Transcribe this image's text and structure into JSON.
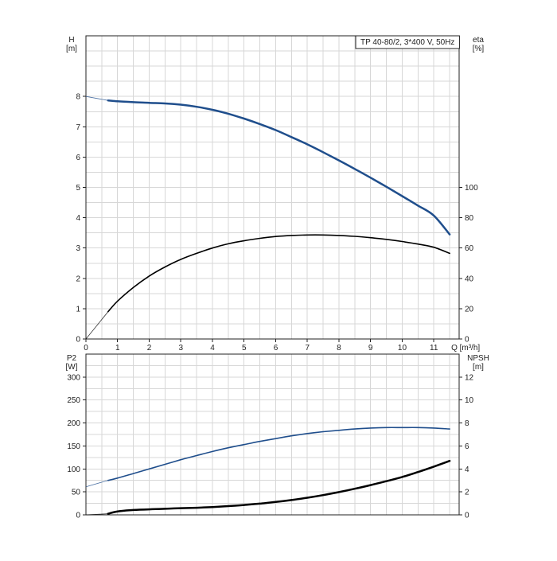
{
  "chart_data": [
    {
      "type": "line",
      "title": "TP 40-80/2, 3*400 V, 50Hz",
      "xlabel": "Q [m³/h]",
      "xlim": [
        0,
        11.8
      ],
      "x_ticks": [
        0,
        1,
        2,
        3,
        4,
        5,
        6,
        7,
        8,
        9,
        10,
        11
      ],
      "ylabel_left": [
        "H",
        "[m]"
      ],
      "ylim_left": [
        0,
        10
      ],
      "y_ticks_left": [
        0,
        1,
        2,
        3,
        4,
        5,
        6,
        7,
        8
      ],
      "ylabel_right": [
        "eta",
        "[%]"
      ],
      "ylim_right": [
        0,
        200
      ],
      "y_ticks_right": [
        0,
        20,
        40,
        60,
        80,
        100
      ],
      "grid": true,
      "series": [
        {
          "axis": "left",
          "color": "#1f4e8c",
          "line": "thick",
          "thin_extension": {
            "x": [
              0,
              0.7
            ],
            "y": [
              8.0,
              7.87
            ]
          },
          "x": [
            0.7,
            1,
            1.5,
            2,
            2.5,
            3,
            3.5,
            4,
            4.5,
            5,
            5.5,
            6,
            6.5,
            7,
            7.5,
            8,
            8.5,
            9,
            9.5,
            10,
            10.5,
            11,
            11.5
          ],
          "y": [
            7.87,
            7.84,
            7.81,
            7.79,
            7.77,
            7.73,
            7.66,
            7.56,
            7.43,
            7.27,
            7.09,
            6.89,
            6.66,
            6.42,
            6.16,
            5.89,
            5.61,
            5.32,
            5.02,
            4.71,
            4.4,
            4.07,
            3.45
          ]
        },
        {
          "axis": "right",
          "color": "#000000",
          "line": "medium",
          "thin_extension": {
            "x": [
              0,
              0.7
            ],
            "y": [
              0,
              18
            ]
          },
          "x": [
            0.7,
            1,
            1.5,
            2,
            2.5,
            3,
            3.5,
            4,
            4.5,
            5,
            5.5,
            6,
            6.5,
            7,
            7.5,
            8,
            8.5,
            9,
            9.5,
            10,
            10.5,
            11,
            11.5
          ],
          "y": [
            18,
            25,
            34,
            41.5,
            47.5,
            52.5,
            56.5,
            60,
            62.8,
            64.8,
            66.4,
            67.6,
            68.3,
            68.6,
            68.6,
            68.3,
            67.7,
            66.8,
            65.7,
            64.3,
            62.6,
            60.5,
            56.5
          ]
        }
      ]
    },
    {
      "type": "line",
      "title": "",
      "xlim": [
        0,
        11.8
      ],
      "ylabel_left": [
        "P2",
        "[W]"
      ],
      "ylim_left": [
        0,
        350
      ],
      "y_ticks_left": [
        0,
        50,
        100,
        150,
        200,
        250,
        300
      ],
      "ylabel_right": [
        "NPSH",
        "[m]"
      ],
      "ylim_right": [
        0,
        14
      ],
      "y_ticks_right": [
        0,
        2,
        4,
        6,
        8,
        10,
        12
      ],
      "grid": true,
      "series": [
        {
          "axis": "left",
          "color": "#1f4e8c",
          "line": "medium",
          "thin_extension": {
            "x": [
              0,
              0.7
            ],
            "y": [
              61,
              75
            ]
          },
          "x": [
            0.7,
            1,
            1.5,
            2,
            2.5,
            3,
            3.5,
            4,
            4.5,
            5,
            5.5,
            6,
            6.5,
            7,
            7.5,
            8,
            8.5,
            9,
            9.5,
            10,
            10.5,
            11,
            11.5
          ],
          "y": [
            75,
            80,
            90,
            100,
            110,
            120,
            129,
            138,
            146,
            153,
            160,
            166,
            172,
            177,
            181,
            184,
            187,
            189,
            190,
            190,
            190,
            189,
            187
          ]
        },
        {
          "axis": "right",
          "color": "#000000",
          "line": "thick",
          "thin_extension": {
            "x": [
              0,
              0.7
            ],
            "y": [
              0,
              0.1
            ]
          },
          "x": [
            0.7,
            1,
            1.5,
            2,
            2.5,
            3,
            3.5,
            4,
            4.5,
            5,
            5.5,
            6,
            6.5,
            7,
            7.5,
            8,
            8.5,
            9,
            9.5,
            10,
            10.5,
            11,
            11.5
          ],
          "y": [
            0.1,
            0.3,
            0.42,
            0.48,
            0.53,
            0.58,
            0.62,
            0.68,
            0.76,
            0.86,
            0.98,
            1.12,
            1.29,
            1.49,
            1.72,
            1.98,
            2.27,
            2.59,
            2.93,
            3.3,
            3.73,
            4.2,
            4.7
          ]
        }
      ]
    }
  ]
}
